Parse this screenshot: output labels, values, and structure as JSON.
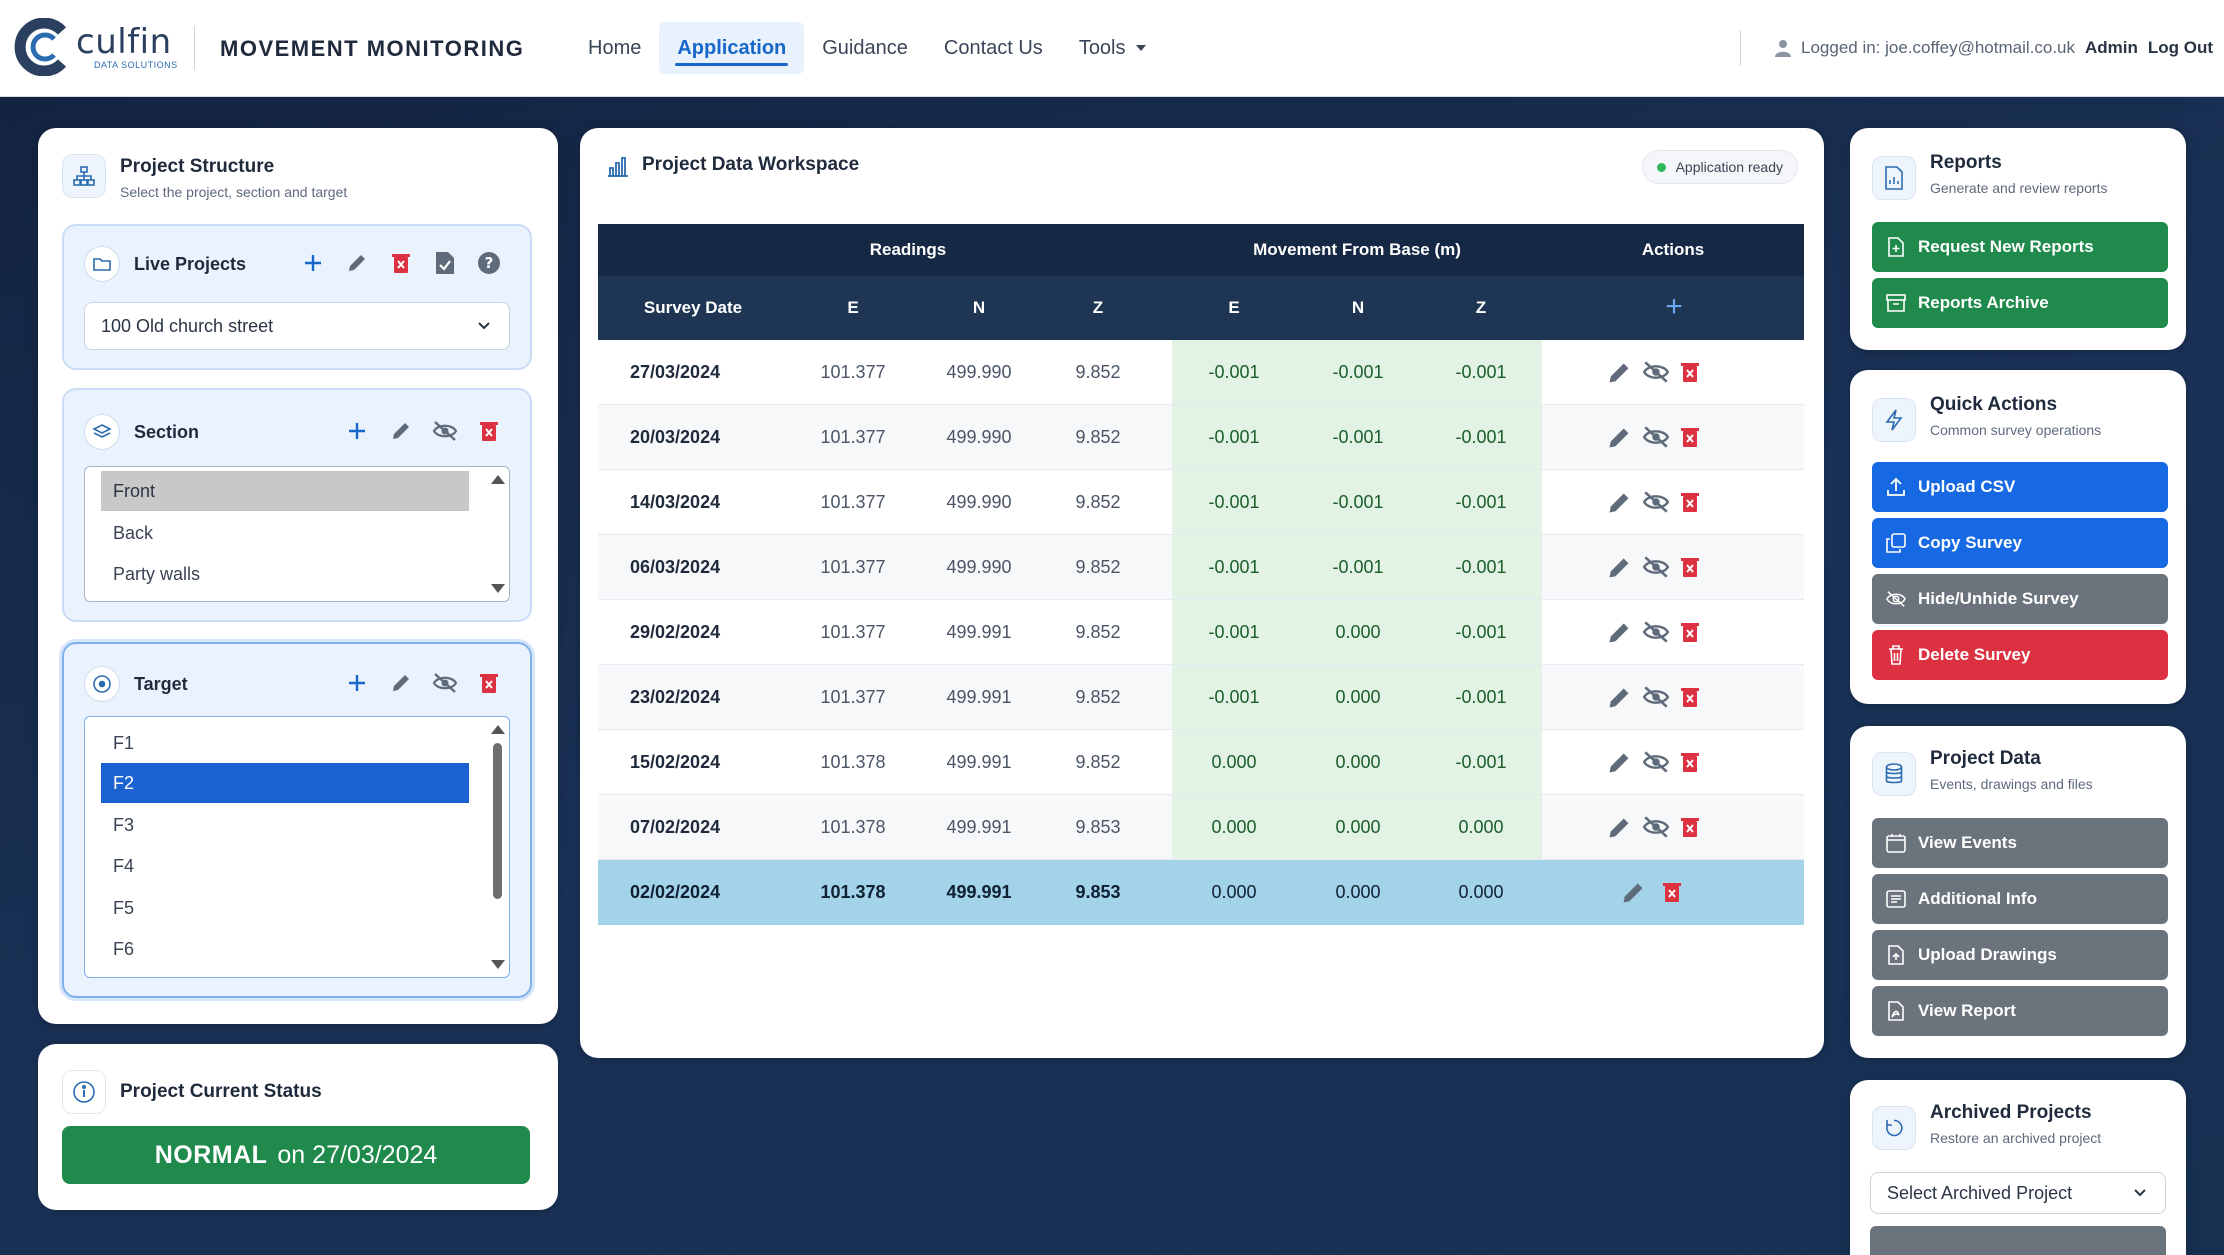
{
  "navbar": {
    "brand_word": "culfin",
    "brand_sub": "DATA SOLUTIONS",
    "app_title": "MOVEMENT MONITORING",
    "links": [
      "Home",
      "Application",
      "Guidance",
      "Contact Us",
      "Tools"
    ],
    "active_link": "Application",
    "login_text": "Logged in: joe.coffey@hotmail.co.uk",
    "admin_label": "Admin",
    "logout_label": "Log Out"
  },
  "structure": {
    "title": "Project Structure",
    "subtitle": "Select the project, section and target",
    "live_projects": {
      "title": "Live Projects",
      "selected": "100 Old church street"
    },
    "section": {
      "title": "Section",
      "items": [
        "Front",
        "Back",
        "Party walls"
      ],
      "selected": "Front"
    },
    "target": {
      "title": "Target",
      "items": [
        "F1",
        "F2",
        "F3",
        "F4",
        "F5",
        "F6"
      ],
      "selected": "F2"
    }
  },
  "status": {
    "title": "Project Current Status",
    "state": "NORMAL",
    "date_text": "on 27/03/2024",
    "color": "#1f8a4c"
  },
  "workspace": {
    "title": "Project Data Workspace",
    "badge": "Application ready",
    "group_headers": {
      "readings": "Readings",
      "movement": "Movement From Base (m)",
      "actions": "Actions"
    },
    "columns": [
      "Survey Date",
      "E",
      "N",
      "Z",
      "E",
      "N",
      "Z"
    ],
    "add_symbol": "+",
    "rows": [
      {
        "date": "27/03/2024",
        "e": "101.377",
        "n": "499.990",
        "z": "9.852",
        "me": "-0.001",
        "mn": "-0.001",
        "mz": "-0.001",
        "base": false
      },
      {
        "date": "20/03/2024",
        "e": "101.377",
        "n": "499.990",
        "z": "9.852",
        "me": "-0.001",
        "mn": "-0.001",
        "mz": "-0.001",
        "base": false
      },
      {
        "date": "14/03/2024",
        "e": "101.377",
        "n": "499.990",
        "z": "9.852",
        "me": "-0.001",
        "mn": "-0.001",
        "mz": "-0.001",
        "base": false
      },
      {
        "date": "06/03/2024",
        "e": "101.377",
        "n": "499.990",
        "z": "9.852",
        "me": "-0.001",
        "mn": "-0.001",
        "mz": "-0.001",
        "base": false
      },
      {
        "date": "29/02/2024",
        "e": "101.377",
        "n": "499.991",
        "z": "9.852",
        "me": "-0.001",
        "mn": "0.000",
        "mz": "-0.001",
        "base": false
      },
      {
        "date": "23/02/2024",
        "e": "101.377",
        "n": "499.991",
        "z": "9.852",
        "me": "-0.001",
        "mn": "0.000",
        "mz": "-0.001",
        "base": false
      },
      {
        "date": "15/02/2024",
        "e": "101.378",
        "n": "499.991",
        "z": "9.852",
        "me": "0.000",
        "mn": "0.000",
        "mz": "-0.001",
        "base": false
      },
      {
        "date": "07/02/2024",
        "e": "101.378",
        "n": "499.991",
        "z": "9.853",
        "me": "0.000",
        "mn": "0.000",
        "mz": "0.000",
        "base": false
      },
      {
        "date": "02/02/2024",
        "e": "101.378",
        "n": "499.991",
        "z": "9.853",
        "me": "0.000",
        "mn": "0.000",
        "mz": "0.000",
        "base": true
      }
    ]
  },
  "reports": {
    "title": "Reports",
    "subtitle": "Generate and review reports",
    "request_label": "Request New Reports",
    "archive_label": "Reports Archive"
  },
  "quick_actions": {
    "title": "Quick Actions",
    "subtitle": "Common survey operations",
    "upload_csv": "Upload CSV",
    "copy_survey": "Copy Survey",
    "hide_unhide": "Hide/Unhide Survey",
    "delete_survey": "Delete Survey"
  },
  "project_data": {
    "title": "Project Data",
    "subtitle": "Events, drawings and files",
    "view_events": "View Events",
    "additional_info": "Additional Info",
    "upload_drawings": "Upload Drawings",
    "view_report": "View Report"
  },
  "archived": {
    "title": "Archived Projects",
    "subtitle": "Restore an archived project",
    "select_placeholder": "Select Archived Project"
  },
  "colors": {
    "accent": "#1667c9",
    "success": "#1f8a4c",
    "danger": "#dc3140",
    "table_header": "#162944",
    "movement_band": "#e2f3e6",
    "base_row": "#a3d3e8"
  }
}
